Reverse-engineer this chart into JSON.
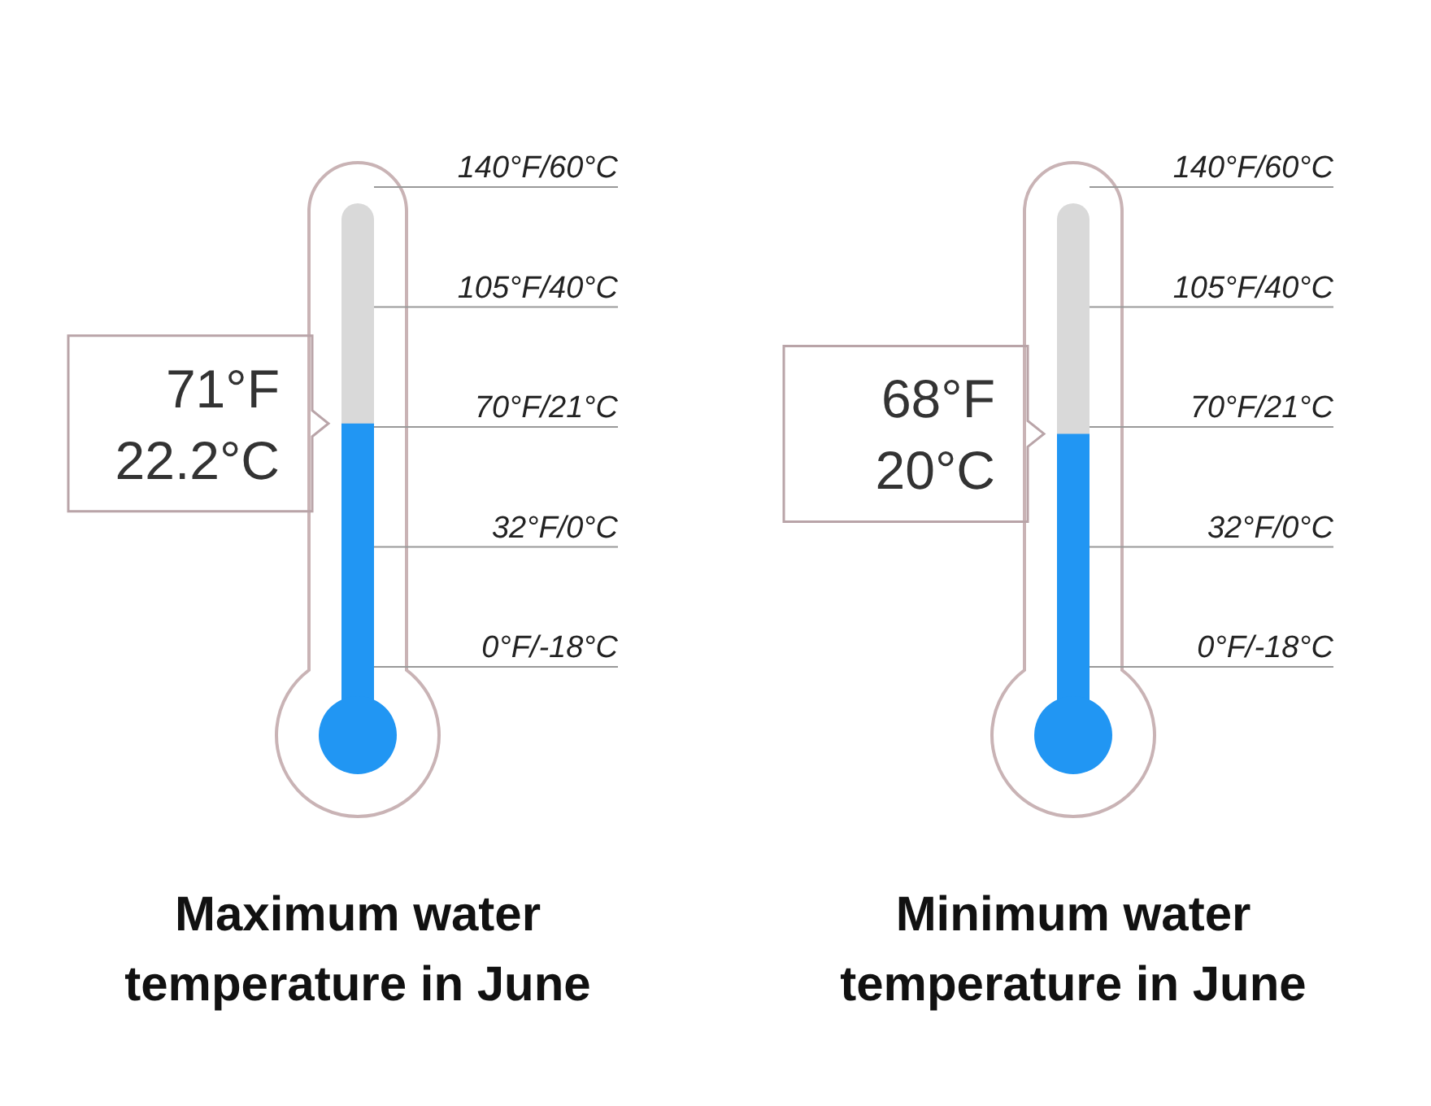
{
  "chart_data": [
    {
      "type": "other",
      "title": "Maximum water temperature in June",
      "values": [
        71
      ],
      "value_labels": [
        "71°F\n22.2°C"
      ],
      "color": "#2196f3",
      "annotations": [
        "140°F/60°C",
        "105°F/40°C",
        "70°F/21°C",
        "32°F/0°C",
        "0°F/-18°C"
      ]
    },
    {
      "type": "other",
      "title": "Minimum water temperature in June",
      "values": [
        68
      ],
      "value_labels": [
        "68°F\n20°C"
      ],
      "color": "#2196f3",
      "annotations": [
        "140°F/60°C",
        "105°F/40°C",
        "70°F/21°C",
        "32°F/0°C",
        "0°F/-18°C"
      ]
    }
  ]
}
